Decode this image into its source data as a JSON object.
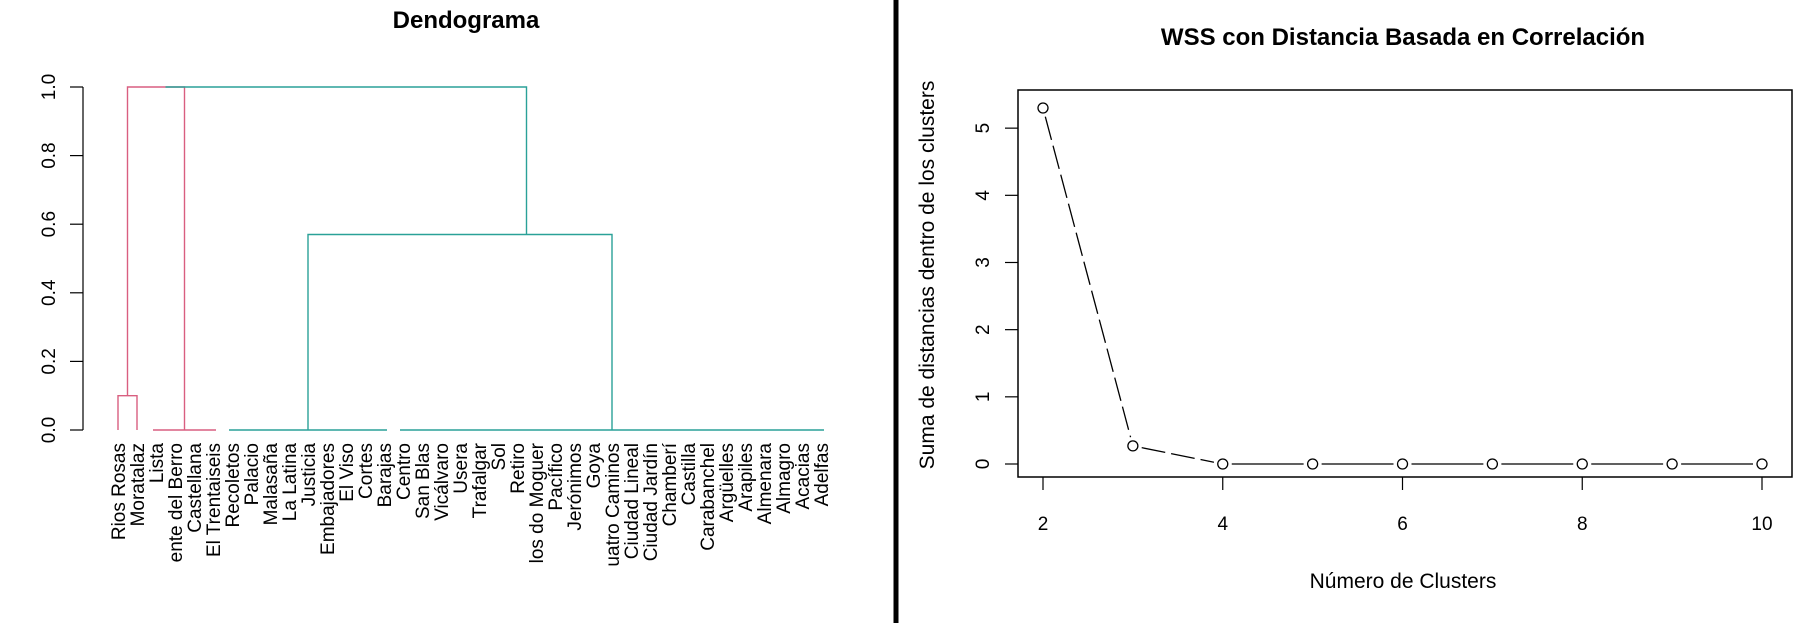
{
  "panels": {
    "divider_color": "#000000"
  },
  "chart_data": [
    {
      "type": "dendrogram",
      "title": "Dendograma",
      "xlabel": "",
      "ylabel": "",
      "ylim": [
        0,
        1
      ],
      "y_ticks": [
        "0.0",
        "0.2",
        "0.4",
        "0.6",
        "0.8",
        "1.0"
      ],
      "y_tick_values": [
        0,
        0.2,
        0.4,
        0.6,
        0.8,
        1.0
      ],
      "leaves": [
        "Rios Rosas",
        "Moratalaz",
        "Lista",
        "ente del Berro",
        "Castellana",
        "El Trentaiseis",
        "Recoletos",
        "Palacio",
        "Malasaña",
        "La Latina",
        "Justicia",
        "Embajadores",
        "El Viso",
        "Cortes",
        "Barajas",
        "Centro",
        "San Blas",
        "Vicálvaro",
        "Usera",
        "Trafalgar",
        "Sol",
        "Retiro",
        "los do Moguer",
        "Pacífico",
        "Jerónimos",
        "Goya",
        "uatro Caminos",
        "Ciudad Lineal",
        "Ciudad Jardín",
        "Chamberí",
        "Castilla",
        "Carabanchel",
        "Argüelles",
        "Arapiles",
        "Almenara",
        "Almagro",
        "Acacias",
        "Adelfas"
      ],
      "clusters": [
        {
          "leaves": [
            0,
            5
          ],
          "color": "#d95f80"
        },
        {
          "leaves": [
            6,
            37
          ],
          "color": "#2aa198"
        }
      ],
      "merges": [
        {
          "left": [
            0
          ],
          "right": [
            1
          ],
          "height": 0.1,
          "color": "#d95f80"
        },
        {
          "left": [
            2,
            3,
            4,
            5
          ],
          "right": [],
          "height": 0.0,
          "color": "#d95f80"
        },
        {
          "left": [
            0,
            1
          ],
          "right": [
            2,
            3,
            4,
            5
          ],
          "height": 1.0,
          "color": "#d95f80"
        },
        {
          "left": [
            6,
            7,
            8,
            9,
            10,
            11,
            12,
            13,
            14
          ],
          "right": [],
          "height": 0.0,
          "color": "#2aa198"
        },
        {
          "left": [
            15,
            16,
            17,
            18,
            19,
            20,
            21,
            22,
            23,
            24,
            25,
            26,
            27,
            28,
            29,
            30,
            31,
            32,
            33,
            34,
            35,
            36,
            37
          ],
          "right": [],
          "height": 0.0,
          "color": "#2aa198"
        },
        {
          "left": [
            6,
            7,
            8,
            9,
            10,
            11,
            12,
            13,
            14
          ],
          "right": [
            15,
            16,
            17,
            18,
            19,
            20,
            21,
            22,
            23,
            24,
            25,
            26,
            27,
            28,
            29,
            30,
            31,
            32,
            33,
            34,
            35,
            36,
            37
          ],
          "height": 0.57,
          "color": "#2aa198"
        },
        {
          "left": [
            0,
            1,
            2,
            3,
            4,
            5
          ],
          "right": [
            6,
            7,
            8,
            9,
            10,
            11,
            12,
            13,
            14,
            15,
            16,
            17,
            18,
            19,
            20,
            21,
            22,
            23,
            24,
            25,
            26,
            27,
            28,
            29,
            30,
            31,
            32,
            33,
            34,
            35,
            36,
            37
          ],
          "height": 1.0,
          "color": "#2aa198"
        }
      ]
    },
    {
      "type": "line",
      "title": "WSS con Distancia Basada en Correlación",
      "xlabel": "Número de Clusters",
      "ylabel": "Suma de distancias dentro de los clusters",
      "xlim": [
        2,
        10
      ],
      "ylim": [
        0,
        5.3
      ],
      "x_ticks": [
        "2",
        "4",
        "6",
        "8",
        "10"
      ],
      "x_tick_values": [
        2,
        4,
        6,
        8,
        10
      ],
      "y_ticks": [
        "0",
        "1",
        "2",
        "3",
        "4",
        "5"
      ],
      "y_tick_values": [
        0,
        1,
        2,
        3,
        4,
        5
      ],
      "x": [
        2,
        3,
        4,
        5,
        6,
        7,
        8,
        9,
        10
      ],
      "series": [
        {
          "name": "",
          "values": [
            5.3,
            0.27,
            0.0,
            0.0,
            0.0,
            0.0,
            0.0,
            0.0,
            0.0
          ],
          "color": "#000000",
          "line_style": "dashed",
          "marker": "open-circle"
        }
      ],
      "grid": false,
      "box": true
    }
  ]
}
